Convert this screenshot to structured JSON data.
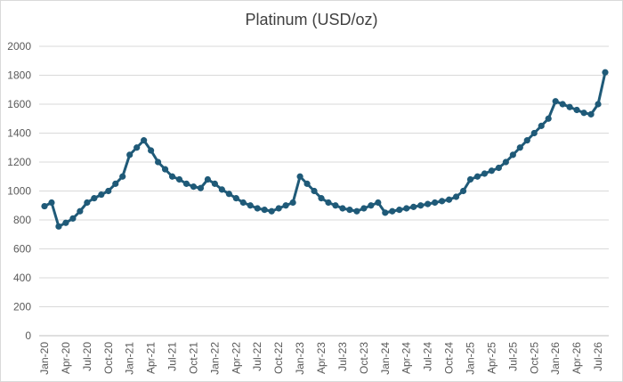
{
  "chart_data": {
    "type": "line",
    "title": "Platinum (USD/oz)",
    "xlabel": "",
    "ylabel": "",
    "ylim": [
      0,
      2000
    ],
    "yticks": [
      0,
      200,
      400,
      600,
      800,
      1000,
      1200,
      1400,
      1600,
      1800,
      2000
    ],
    "grid": true,
    "legend": "none",
    "colors": {
      "series": "#1f5a78",
      "grid": "#d9d9d9",
      "axis": "#bfbfbf"
    },
    "x": [
      "Jan-20",
      "Feb-20",
      "Mar-20",
      "Apr-20",
      "May-20",
      "Jun-20",
      "Jul-20",
      "Aug-20",
      "Sep-20",
      "Oct-20",
      "Nov-20",
      "Dec-20",
      "Jan-21",
      "Feb-21",
      "Mar-21",
      "Apr-21",
      "May-21",
      "Jun-21",
      "Jul-21",
      "Aug-21",
      "Sep-21",
      "Oct-21",
      "Nov-21",
      "Dec-21",
      "Jan-22",
      "Feb-22",
      "Mar-22",
      "Apr-22",
      "May-22",
      "Jun-22",
      "Jul-22",
      "Aug-22",
      "Sep-22",
      "Oct-22",
      "Nov-22",
      "Dec-22",
      "Jan-23",
      "Feb-23",
      "Mar-23",
      "Apr-23",
      "May-23",
      "Jun-23",
      "Jul-23",
      "Aug-23",
      "Sep-23",
      "Oct-23",
      "Nov-23",
      "Dec-23",
      "Jan-24",
      "Feb-24",
      "Mar-24",
      "Apr-24",
      "May-24",
      "Jun-24",
      "Jul-24",
      "Aug-24",
      "Sep-24",
      "Oct-24",
      "Nov-24",
      "Dec-24",
      "Jan-25",
      "Feb-25",
      "Mar-25",
      "Apr-25",
      "May-25",
      "Jun-25",
      "Jul-25",
      "Aug-25",
      "Sep-25",
      "Oct-25",
      "Nov-25",
      "Dec-25",
      "Jan-26",
      "Feb-26",
      "Mar-26",
      "Apr-26",
      "May-26",
      "Jun-26",
      "Jul-26",
      "Aug-26"
    ],
    "x_tick_labels": [
      "Jan-20",
      "Apr-20",
      "Jul-20",
      "Oct-20",
      "Jan-21",
      "Apr-21",
      "Jul-21",
      "Oct-21",
      "Jan-22",
      "Apr-22",
      "Jul-22",
      "Oct-22",
      "Jan-23",
      "Apr-23",
      "Jul-23",
      "Oct-23",
      "Jan-24",
      "Apr-24",
      "Jul-24",
      "Oct-24",
      "Jan-25",
      "Apr-25",
      "Jul-25",
      "Oct-25",
      "Jan-26",
      "Apr-26",
      "Jul-26"
    ],
    "series": [
      {
        "values": [
          895,
          920,
          755,
          780,
          810,
          860,
          920,
          950,
          975,
          1000,
          1050,
          1100,
          1250,
          1300,
          1350,
          1280,
          1200,
          1150,
          1100,
          1080,
          1050,
          1030,
          1020,
          1080,
          1050,
          1010,
          980,
          950,
          920,
          900,
          880,
          870,
          860,
          880,
          900,
          920,
          1100,
          1050,
          1000,
          950,
          920,
          900,
          880,
          870,
          860,
          880,
          900,
          920,
          850,
          860,
          870,
          880,
          890,
          900,
          910,
          920,
          930,
          940,
          960,
          1000,
          1080,
          1100,
          1120,
          1140,
          1160,
          1200,
          1250,
          1300,
          1350,
          1400,
          1450,
          1500,
          1620,
          1600,
          1580,
          1560,
          1540,
          1530,
          1600,
          1820
        ]
      }
    ]
  }
}
